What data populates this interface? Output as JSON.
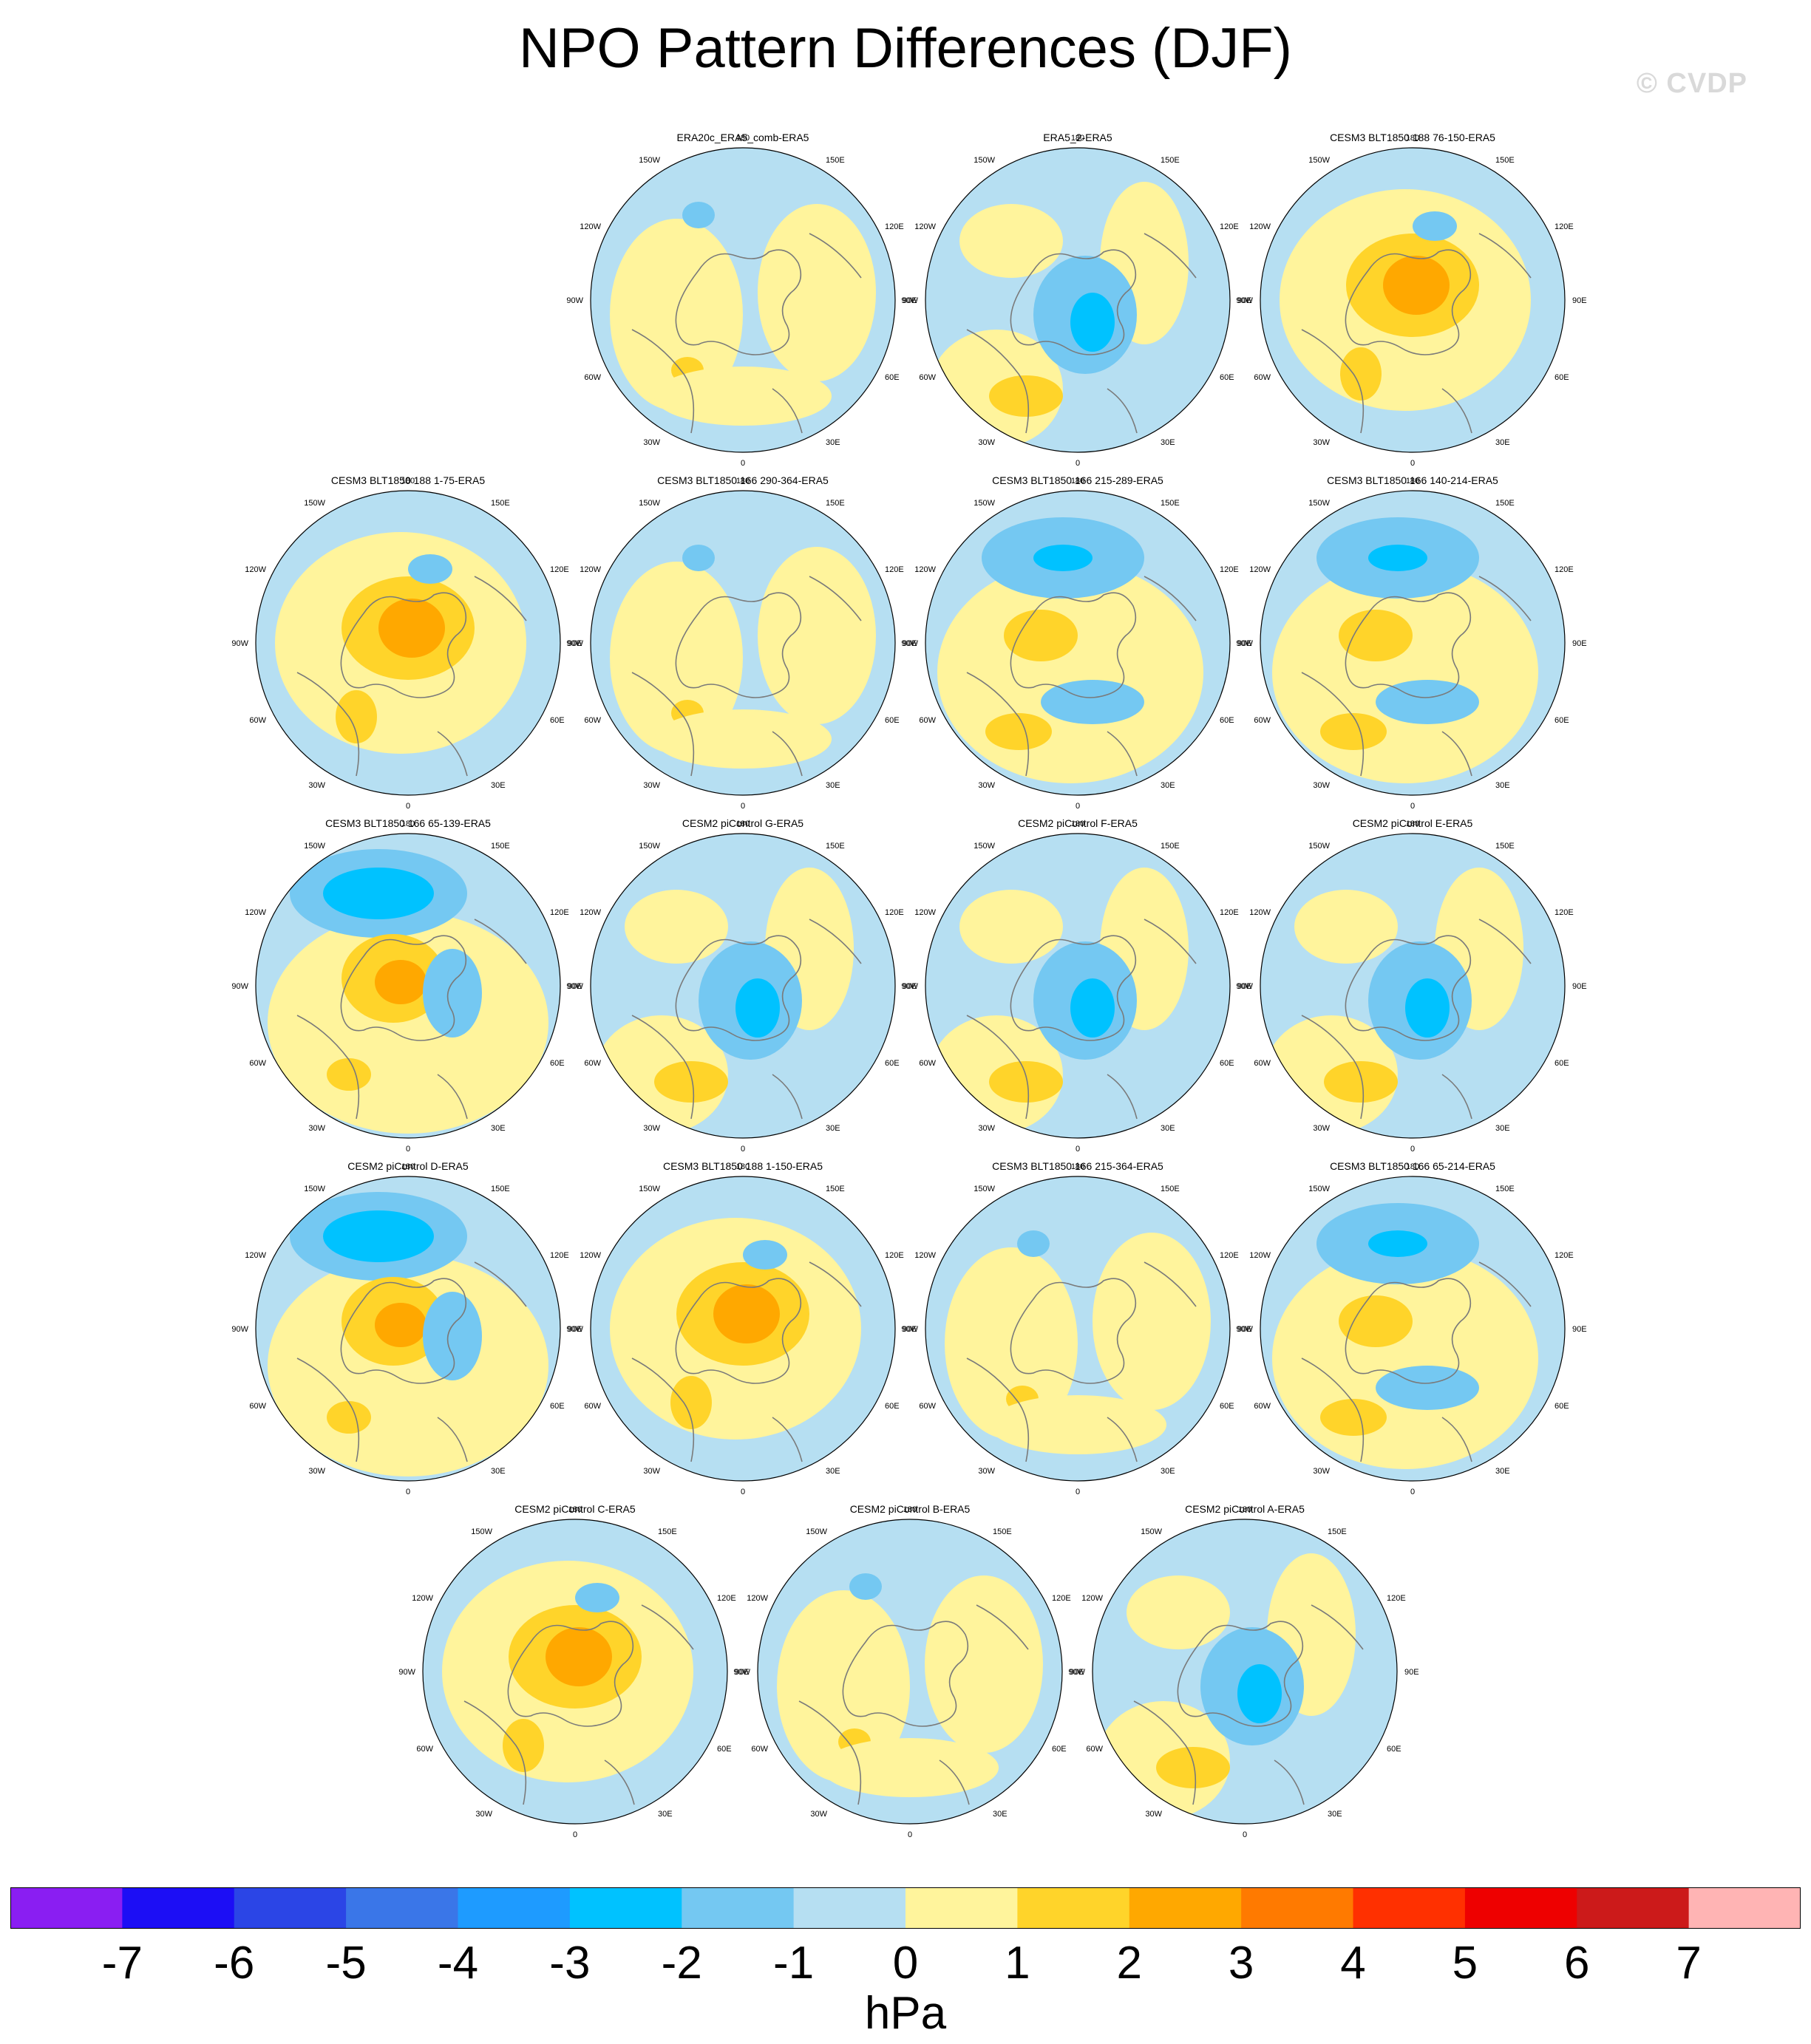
{
  "title": "NPO Pattern Differences (DJF)",
  "watermark": "© CVDP",
  "map_labels": {
    "lon_180": "180",
    "lon_150w": "150W",
    "lon_150e": "150E",
    "lon_120w": "120W",
    "lon_120e": "120E",
    "lon_90w": "90W",
    "lon_90e": "90E",
    "lon_60w": "60W",
    "lon_60e": "60E",
    "lon_30w": "30W",
    "lon_30e": "30E",
    "lon_0": "0"
  },
  "panels": [
    {
      "title": "ERA20c_ERA5_comb-ERA5",
      "style": "yellow-mix"
    },
    {
      "title": "ERA5_2-ERA5",
      "style": "blue-center"
    },
    {
      "title": "CESM3 BLT1850 188 76-150-ERA5",
      "style": "orange-center"
    },
    {
      "title": "CESM3 BLT1850 188 1-75-ERA5",
      "style": "orange-center"
    },
    {
      "title": "CESM3 BLT1850 166 290-364-ERA5",
      "style": "yellow-mix"
    },
    {
      "title": "CESM3 BLT1850 166 215-289-ERA5",
      "style": "blue-top"
    },
    {
      "title": "CESM3 BLT1850 166 140-214-ERA5",
      "style": "blue-top"
    },
    {
      "title": "CESM3 BLT1850 166 65-139-ERA5",
      "style": "blue-top-strong"
    },
    {
      "title": "CESM2 piControl G-ERA5",
      "style": "blue-center"
    },
    {
      "title": "CESM2 piControl F-ERA5",
      "style": "blue-center"
    },
    {
      "title": "CESM2 piControl E-ERA5",
      "style": "blue-center"
    },
    {
      "title": "CESM2 piControl D-ERA5",
      "style": "blue-top-strong"
    },
    {
      "title": "CESM3 BLT1850 188 1-150-ERA5",
      "style": "orange-center"
    },
    {
      "title": "CESM3 BLT1850 166 215-364-ERA5",
      "style": "yellow-mix"
    },
    {
      "title": "CESM3 BLT1850 166 65-214-ERA5",
      "style": "blue-top"
    },
    {
      "title": "CESM2 piControl C-ERA5",
      "style": "orange-center"
    },
    {
      "title": "CESM2 piControl B-ERA5",
      "style": "yellow-mix"
    },
    {
      "title": "CESM2 piControl A-ERA5",
      "style": "blue-center"
    }
  ],
  "colorbar": {
    "colors": [
      "#8a1ef2",
      "#1c0ef5",
      "#2b45e6",
      "#3a76e8",
      "#1e9bff",
      "#00c2ff",
      "#74c8f2",
      "#b6dff2",
      "#fff49c",
      "#ffd42a",
      "#ffa800",
      "#ff7a00",
      "#ff3000",
      "#ee0000",
      "#cc1a1a",
      "#ffb4b4"
    ],
    "labels": [
      "-7",
      "-6",
      "-5",
      "-4",
      "-3",
      "-2",
      "-1",
      "0",
      "1",
      "2",
      "3",
      "4",
      "5",
      "6",
      "7"
    ],
    "units": "hPa"
  }
}
